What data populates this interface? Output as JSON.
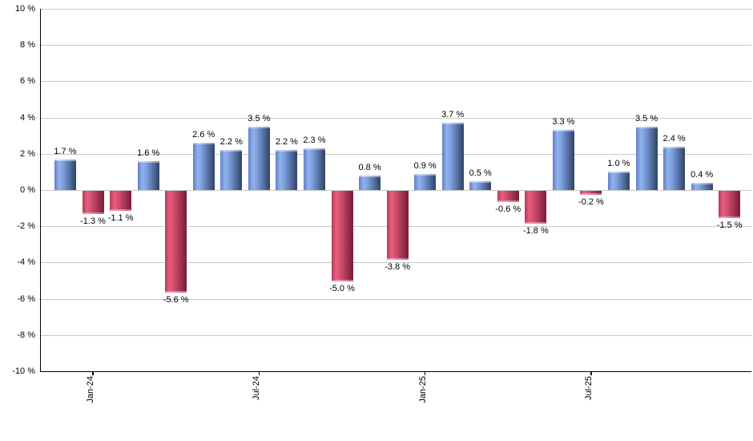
{
  "chart_data": {
    "type": "bar",
    "title": "",
    "unit": "%",
    "ylim": [
      -10,
      10
    ],
    "y_tick_interval": 2,
    "y_tick_labels": [
      "10 %",
      "8 %",
      "6 %",
      "4 %",
      "2 %",
      "0 %",
      "-2 %",
      "-4 %",
      "-6 %",
      "-8 %",
      "-10 %"
    ],
    "x_tick_labels": [
      {
        "label": "Jan-24",
        "bar_index": 1
      },
      {
        "label": "Jul-24",
        "bar_index": 7
      },
      {
        "label": "Jan-25",
        "bar_index": 13
      },
      {
        "label": "Jul-25",
        "bar_index": 19
      }
    ],
    "values": [
      1.7,
      -1.3,
      -1.1,
      1.6,
      -5.6,
      2.6,
      2.2,
      3.5,
      2.2,
      2.3,
      -5.0,
      0.8,
      -3.8,
      0.9,
      3.7,
      0.5,
      -0.6,
      -1.8,
      3.3,
      -0.2,
      1.0,
      3.5,
      2.4,
      0.4,
      -1.5
    ],
    "value_labels": [
      "1.7 %",
      "-1.3 %",
      "-1.1 %",
      "1.6 %",
      "-5.6 %",
      "2.6 %",
      "2.2 %",
      "3.5 %",
      "2.2 %",
      "2.3 %",
      "-5.0 %",
      "0.8 %",
      "-3.8 %",
      "0.9 %",
      "3.7 %",
      "0.5 %",
      "-0.6 %",
      "-1.8 %",
      "3.3 %",
      "-0.2 %",
      "1.0 %",
      "3.5 %",
      "2.4 %",
      "0.4 %",
      "-1.5 %"
    ],
    "colors": {
      "positive_edge": "#6080c8",
      "positive_highlight": "#93b2ec",
      "positive_mid": "#7ba0e0",
      "positive_dark": "#35486c",
      "negative_edge": "#b93a5a",
      "negative_highlight": "#e75f7e",
      "negative_mid": "#d44e70",
      "negative_dark": "#7d1f3b",
      "gridline": "#c9c9c9",
      "axis": "#000000",
      "label_text": "#000000",
      "background": "#ffffff"
    },
    "legend": "none",
    "grid": "horizontal"
  }
}
